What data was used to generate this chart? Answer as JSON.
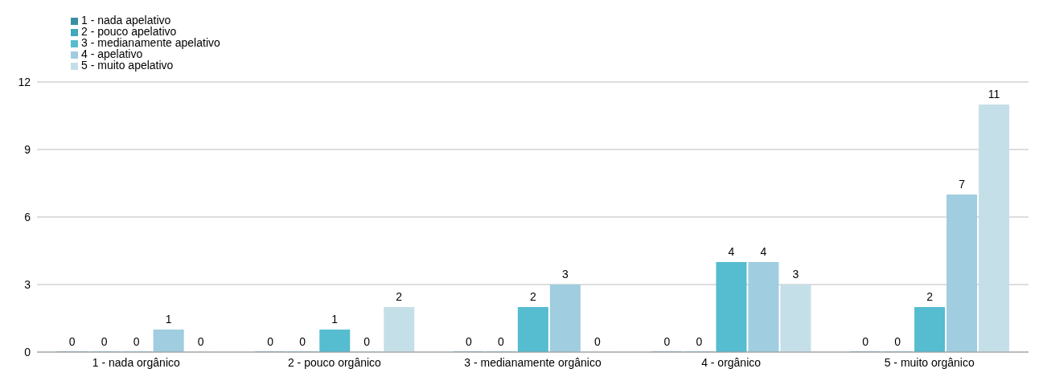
{
  "chart_data": {
    "type": "bar",
    "categories": [
      "1 - nada orgânico",
      "2 - pouco orgânico",
      "3 - medianamente orgânico",
      "4 - orgânico",
      "5 - muito orgânico"
    ],
    "series": [
      {
        "name": "1 - nada apelativo",
        "color": "#3a8fa3",
        "values": [
          0,
          0,
          0,
          0,
          0
        ]
      },
      {
        "name": "2 - pouco apelativo",
        "color": "#40a9bf",
        "values": [
          0,
          0,
          0,
          0,
          0
        ]
      },
      {
        "name": "3 - medianamente apelativo",
        "color": "#56bcd0",
        "values": [
          0,
          1,
          2,
          4,
          2
        ]
      },
      {
        "name": "4 - apelativo",
        "color": "#a0cde0",
        "values": [
          1,
          0,
          3,
          4,
          7
        ]
      },
      {
        "name": "5 - muito apelativo",
        "color": "#c5dfe8",
        "values": [
          0,
          2,
          0,
          3,
          11
        ]
      }
    ],
    "ylim": [
      0,
      12
    ],
    "yticks": [
      0,
      3,
      6,
      9,
      12
    ],
    "grid": "y",
    "legend": "top left",
    "data_labels": true
  }
}
